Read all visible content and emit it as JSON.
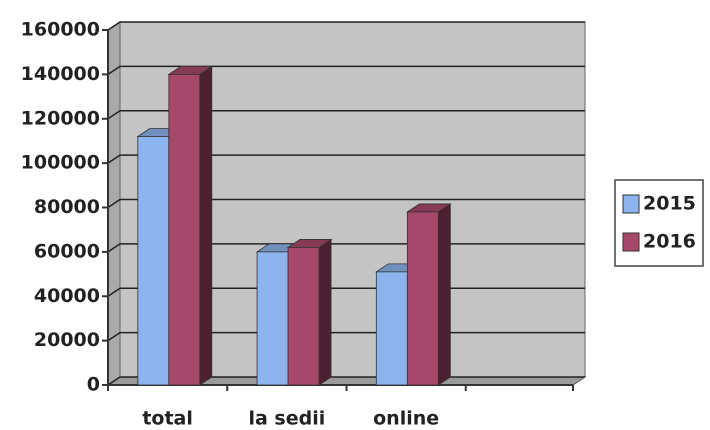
{
  "chart_data": {
    "type": "bar3d",
    "categories": [
      "total",
      "la sedii",
      "online",
      null
    ],
    "series": [
      {
        "name": "2015",
        "color": "#8db4ee",
        "values": [
          112000,
          60000,
          51000,
          null
        ]
      },
      {
        "name": "2016",
        "color": "#a6486a",
        "values": [
          140000,
          62000,
          78000,
          null
        ]
      }
    ],
    "ylim": [
      0,
      160000
    ],
    "yticks": [
      0,
      20000,
      40000,
      60000,
      80000,
      100000,
      120000,
      140000,
      160000
    ],
    "grid": true,
    "legend": "right"
  }
}
